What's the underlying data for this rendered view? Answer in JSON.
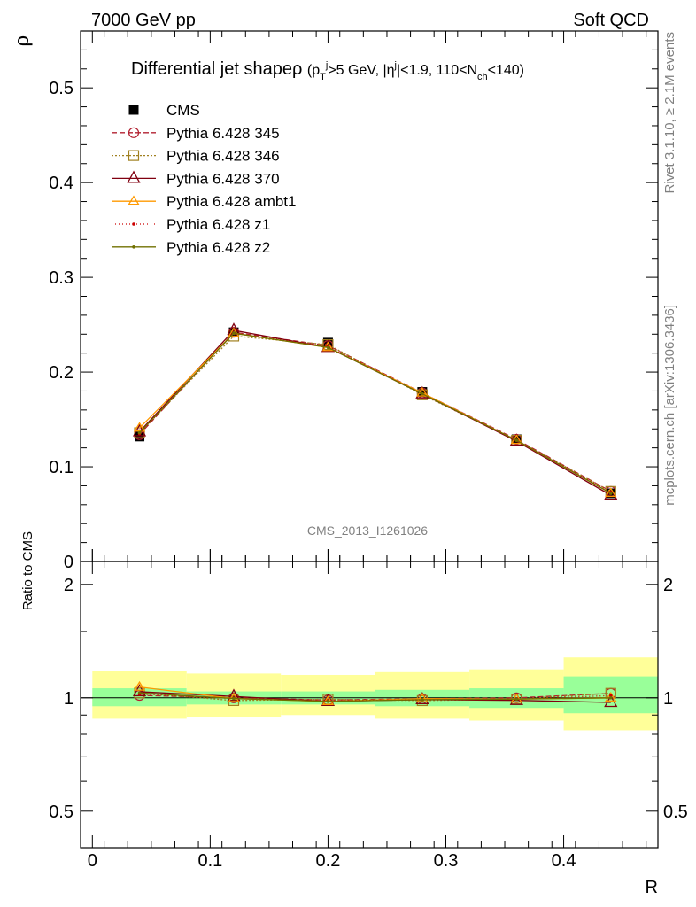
{
  "header": {
    "left": "7000 GeV pp",
    "right": "Soft QCD"
  },
  "side": {
    "rivet": "Rivet 3.1.10, ≥ 2.1M events",
    "mcplots": "mcplots.cern.ch [arXiv:1306.3436]"
  },
  "chart_data": {
    "type": "line",
    "title": "Differential jet shapeρ",
    "title_cut": "(p_T^j>5 GeV, |η^j|<1.9, 110<N_ch<140)",
    "title_cut_parts": {
      "p": "(p",
      "T": "T",
      "j1": "j",
      "mid": ">5 GeV, |η",
      "j2": "j",
      "mid2": "|<1.9, 110<N",
      "ch": "ch",
      "end": "<140)"
    },
    "ylabel": "ρ",
    "xlabel": "R",
    "ratio_ylabel": "Ratio to CMS",
    "watermark": "CMS_2013_I1261026",
    "main_ylim": [
      0,
      0.56
    ],
    "ratio_ylim": [
      0.4,
      2.3
    ],
    "xlim": [
      -0.01,
      0.48
    ],
    "x": [
      0.04,
      0.12,
      0.2,
      0.28,
      0.36,
      0.44
    ],
    "bin_edges": [
      0.0,
      0.08,
      0.16,
      0.24,
      0.32,
      0.4,
      0.48
    ],
    "main_yticks": [
      "0",
      "0.1",
      "0.2",
      "0.3",
      "0.4",
      "0.5"
    ],
    "ratio_yticks": [
      "0.5",
      "1",
      "2"
    ],
    "xticks": [
      "0",
      "0.1",
      "0.2",
      "0.3",
      "0.4"
    ],
    "data": {
      "name": "CMS",
      "values": [
        0.132,
        0.242,
        0.231,
        0.179,
        0.129,
        0.072
      ],
      "band_green": [
        [
          0.95,
          1.06
        ],
        [
          0.96,
          1.04
        ],
        [
          0.96,
          1.04
        ],
        [
          0.95,
          1.05
        ],
        [
          0.94,
          1.06
        ],
        [
          0.91,
          1.14
        ]
      ],
      "band_yellow": [
        [
          0.88,
          1.18
        ],
        [
          0.89,
          1.16
        ],
        [
          0.9,
          1.15
        ],
        [
          0.88,
          1.17
        ],
        [
          0.87,
          1.19
        ],
        [
          0.82,
          1.28
        ]
      ]
    },
    "series": [
      {
        "name": "Pythia 6.428 345",
        "color": "#b22030",
        "dash": "6,3",
        "marker": "circle",
        "values": [
          0.134,
          0.242,
          0.228,
          0.178,
          0.129,
          0.074
        ]
      },
      {
        "name": "Pythia 6.428 346",
        "color": "#a08020",
        "dash": "2,2",
        "marker": "square",
        "values": [
          0.136,
          0.238,
          0.229,
          0.176,
          0.128,
          0.074
        ]
      },
      {
        "name": "Pythia 6.428 370",
        "color": "#800010",
        "dash": "",
        "marker": "triangle",
        "values": [
          0.137,
          0.244,
          0.226,
          0.177,
          0.127,
          0.07
        ]
      },
      {
        "name": "Pythia 6.428 ambt1",
        "color": "#ff9900",
        "dash": "",
        "marker": "triangle-small",
        "values": [
          0.141,
          0.241,
          0.226,
          0.178,
          0.128,
          0.072
        ]
      },
      {
        "name": "Pythia 6.428 z1",
        "color": "#cc0000",
        "dash": "1,3",
        "marker": "dot",
        "values": [
          0.135,
          0.241,
          0.227,
          0.177,
          0.128,
          0.073
        ]
      },
      {
        "name": "Pythia 6.428 z2",
        "color": "#707000",
        "dash": "",
        "marker": "dot",
        "values": [
          0.136,
          0.241,
          0.226,
          0.177,
          0.128,
          0.072
        ]
      }
    ],
    "colors": {
      "green_band": "#99ff99",
      "yellow_band": "#ffff99"
    }
  }
}
